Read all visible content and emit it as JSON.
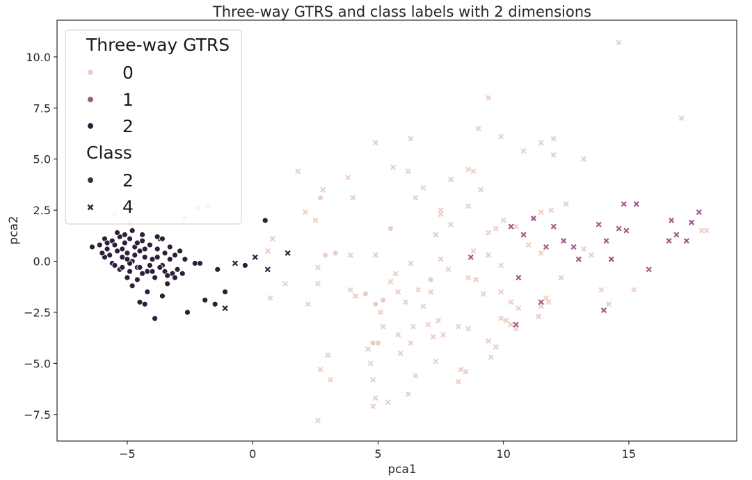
{
  "chart_data": {
    "type": "scatter",
    "title": "Three-way GTRS and class labels with 2 dimensions",
    "xlabel": "pca1",
    "ylabel": "pca2",
    "xlim": [
      -7.8,
      19.3
    ],
    "ylim": [
      -8.8,
      11.8
    ],
    "xticks": [
      -5,
      0,
      5,
      10,
      15
    ],
    "yticks": [
      -7.5,
      -5.0,
      -2.5,
      0.0,
      2.5,
      5.0,
      7.5,
      10.0
    ],
    "xtick_labels": [
      "−5",
      "0",
      "5",
      "10",
      "15"
    ],
    "ytick_labels": [
      "−7.5",
      "−5.0",
      "−2.5",
      "0.0",
      "2.5",
      "5.0",
      "7.5",
      "10.0"
    ],
    "grid": false,
    "legend": {
      "placement": "top-left",
      "hue_title": "Three-way GTRS",
      "hue_items": [
        {
          "label": "0",
          "color": "#ebcfc4"
        },
        {
          "label": "1",
          "color": "#a4588a"
        },
        {
          "label": "2",
          "color": "#2e1e3b"
        }
      ],
      "style_title": "Class",
      "style_items": [
        {
          "label": "2",
          "marker": "circle"
        },
        {
          "label": "4",
          "marker": "x"
        }
      ]
    },
    "hue_colors": {
      "0": "#ebcfc4",
      "1": "#a4588a",
      "2": "#2e1e3b"
    },
    "series": [
      {
        "hue": "2",
        "class": "2",
        "points": [
          [
            -6.4,
            0.7
          ],
          [
            -6.1,
            0.8
          ],
          [
            -5.9,
            1.1
          ],
          [
            -5.8,
            0.6
          ],
          [
            -5.7,
            0.3
          ],
          [
            -5.6,
            1.0
          ],
          [
            -5.5,
            0.8
          ],
          [
            -5.4,
            0.5
          ],
          [
            -5.3,
            1.2
          ],
          [
            -5.2,
            0.2
          ],
          [
            -5.1,
            0.9
          ],
          [
            -5.0,
            0.4
          ],
          [
            -4.9,
            1.1
          ],
          [
            -4.8,
            0.0
          ],
          [
            -4.7,
            0.7
          ],
          [
            -4.6,
            -0.3
          ],
          [
            -4.5,
            0.5
          ],
          [
            -4.4,
            1.0
          ],
          [
            -4.3,
            0.2
          ],
          [
            -4.2,
            -0.5
          ],
          [
            -4.1,
            0.8
          ],
          [
            -4.0,
            0.1
          ],
          [
            -3.9,
            -0.8
          ],
          [
            -3.8,
            0.6
          ],
          [
            -3.7,
            1.1
          ],
          [
            -3.6,
            -0.2
          ],
          [
            -3.5,
            0.4
          ],
          [
            -3.4,
            -1.1
          ],
          [
            -3.3,
            0.7
          ],
          [
            -3.2,
            -0.6
          ],
          [
            -3.1,
            0.3
          ],
          [
            -3.0,
            -0.4
          ],
          [
            -2.9,
            0.5
          ],
          [
            -2.8,
            -0.6
          ],
          [
            -2.7,
            0.1
          ],
          [
            -5.6,
            -0.1
          ],
          [
            -5.3,
            -0.4
          ],
          [
            -5.0,
            -0.8
          ],
          [
            -4.8,
            -1.2
          ],
          [
            -4.6,
            -0.9
          ],
          [
            -4.4,
            -0.6
          ],
          [
            -4.2,
            -1.5
          ],
          [
            -4.5,
            -2.0
          ],
          [
            -4.3,
            -2.1
          ],
          [
            -3.9,
            -2.8
          ],
          [
            -3.6,
            -1.7
          ],
          [
            -2.6,
            -2.5
          ],
          [
            -2.3,
            -0.1
          ],
          [
            -2.1,
            -0.1
          ],
          [
            -1.9,
            -1.9
          ],
          [
            -1.5,
            -2.1
          ],
          [
            -1.4,
            -0.4
          ],
          [
            -1.1,
            -1.5
          ],
          [
            -0.3,
            -0.2
          ],
          [
            -5.9,
            0.2
          ],
          [
            -5.5,
            -0.2
          ],
          [
            -5.2,
            0.6
          ],
          [
            -4.9,
            -0.1
          ],
          [
            -4.7,
            0.3
          ],
          [
            -4.5,
            -0.3
          ],
          [
            -4.3,
            0.6
          ],
          [
            -4.1,
            -0.2
          ],
          [
            -3.8,
            0.2
          ],
          [
            -3.5,
            -0.5
          ],
          [
            -3.3,
            0.1
          ],
          [
            -3.1,
            -0.8
          ],
          [
            -5.4,
            1.4
          ],
          [
            -5.1,
            1.3
          ],
          [
            -4.8,
            1.5
          ],
          [
            -4.4,
            1.3
          ],
          [
            -3.8,
            1.2
          ],
          [
            -3.6,
            1.1
          ],
          [
            -6.0,
            0.4
          ],
          [
            -5.8,
            0.9
          ],
          [
            -5.0,
            0.1
          ],
          [
            -4.6,
            0.9
          ],
          [
            -4.0,
            -0.5
          ],
          [
            -3.7,
            -0.3
          ],
          [
            -3.4,
            -0.7
          ],
          [
            -4.9,
            -0.5
          ],
          [
            -5.2,
            -0.3
          ],
          [
            0.5,
            2.0
          ]
        ]
      },
      {
        "hue": "2",
        "class": "4",
        "points": [
          [
            -0.7,
            -0.1
          ],
          [
            0.1,
            0.2
          ],
          [
            0.6,
            -0.4
          ],
          [
            1.4,
            0.4
          ],
          [
            -1.1,
            -2.3
          ]
        ]
      },
      {
        "hue": "0",
        "class": "2",
        "points": [
          [
            -5.5,
            2.3
          ],
          [
            -4.9,
            1.9
          ],
          [
            -2.7,
            2.1
          ],
          [
            -2.2,
            2.6
          ],
          [
            -1.8,
            2.7
          ],
          [
            2.7,
            3.1
          ],
          [
            2.9,
            0.3
          ],
          [
            3.3,
            0.4
          ],
          [
            4.5,
            -1.6
          ],
          [
            4.8,
            -4.0
          ],
          [
            5.0,
            -4.0
          ],
          [
            5.2,
            -1.9
          ],
          [
            5.5,
            1.6
          ],
          [
            7.1,
            -0.9
          ],
          [
            4.9,
            -2.1
          ]
        ]
      },
      {
        "hue": "0",
        "class": "4",
        "points": [
          [
            14.6,
            10.7
          ],
          [
            9.4,
            8.0
          ],
          [
            17.1,
            7.0
          ],
          [
            9.0,
            6.5
          ],
          [
            9.9,
            6.1
          ],
          [
            6.3,
            6.0
          ],
          [
            4.9,
            5.8
          ],
          [
            11.5,
            5.8
          ],
          [
            12.0,
            6.0
          ],
          [
            10.8,
            5.4
          ],
          [
            12.0,
            5.2
          ],
          [
            13.2,
            5.0
          ],
          [
            5.6,
            4.6
          ],
          [
            6.2,
            4.4
          ],
          [
            1.8,
            4.4
          ],
          [
            3.8,
            4.1
          ],
          [
            8.8,
            4.4
          ],
          [
            8.6,
            4.5
          ],
          [
            7.9,
            4.0
          ],
          [
            2.8,
            3.5
          ],
          [
            4.0,
            3.1
          ],
          [
            6.5,
            3.1
          ],
          [
            9.1,
            3.5
          ],
          [
            6.8,
            3.6
          ],
          [
            2.1,
            2.4
          ],
          [
            7.5,
            2.5
          ],
          [
            7.5,
            2.3
          ],
          [
            8.6,
            2.7
          ],
          [
            11.5,
            2.4
          ],
          [
            11.9,
            2.5
          ],
          [
            12.5,
            2.8
          ],
          [
            9.7,
            1.6
          ],
          [
            9.4,
            1.4
          ],
          [
            10.0,
            2.0
          ],
          [
            10.5,
            1.7
          ],
          [
            7.9,
            1.8
          ],
          [
            7.3,
            1.3
          ],
          [
            2.5,
            2.0
          ],
          [
            0.8,
            1.1
          ],
          [
            0.6,
            0.5
          ],
          [
            2.6,
            -0.3
          ],
          [
            3.9,
            0.3
          ],
          [
            4.9,
            0.3
          ],
          [
            5.7,
            -0.6
          ],
          [
            6.3,
            -0.1
          ],
          [
            7.5,
            0.1
          ],
          [
            7.8,
            -0.4
          ],
          [
            8.8,
            0.5
          ],
          [
            8.6,
            -0.8
          ],
          [
            9.4,
            0.3
          ],
          [
            9.9,
            -0.2
          ],
          [
            11.0,
            0.8
          ],
          [
            11.5,
            0.4
          ],
          [
            13.2,
            0.6
          ],
          [
            13.5,
            0.3
          ],
          [
            12.3,
            -0.8
          ],
          [
            8.9,
            -0.9
          ],
          [
            9.2,
            -1.6
          ],
          [
            9.9,
            -1.5
          ],
          [
            10.3,
            -2.0
          ],
          [
            10.6,
            -2.3
          ],
          [
            11.7,
            -1.8
          ],
          [
            11.8,
            -2.0
          ],
          [
            13.9,
            -1.4
          ],
          [
            14.2,
            -2.1
          ],
          [
            15.2,
            -1.4
          ],
          [
            17.9,
            1.5
          ],
          [
            18.1,
            1.5
          ],
          [
            0.7,
            -1.8
          ],
          [
            1.3,
            -1.1
          ],
          [
            2.2,
            -2.1
          ],
          [
            2.6,
            -1.1
          ],
          [
            3.9,
            -1.4
          ],
          [
            4.1,
            -1.7
          ],
          [
            5.1,
            -2.5
          ],
          [
            5.5,
            -1.0
          ],
          [
            5.8,
            -1.5
          ],
          [
            6.1,
            -2.0
          ],
          [
            6.6,
            -1.4
          ],
          [
            6.8,
            -2.2
          ],
          [
            7.0,
            -3.1
          ],
          [
            7.4,
            -2.9
          ],
          [
            7.2,
            -3.7
          ],
          [
            6.4,
            -3.2
          ],
          [
            6.3,
            -4.0
          ],
          [
            5.8,
            -3.6
          ],
          [
            5.9,
            -4.5
          ],
          [
            5.2,
            -3.2
          ],
          [
            4.6,
            -4.3
          ],
          [
            4.7,
            -5.0
          ],
          [
            4.8,
            -5.8
          ],
          [
            3.0,
            -4.6
          ],
          [
            3.1,
            -5.8
          ],
          [
            2.7,
            -5.3
          ],
          [
            2.6,
            -7.8
          ],
          [
            4.8,
            -7.1
          ],
          [
            4.9,
            -6.7
          ],
          [
            5.4,
            -6.9
          ],
          [
            6.2,
            -6.5
          ],
          [
            6.5,
            -5.6
          ],
          [
            7.3,
            -4.9
          ],
          [
            7.6,
            -3.6
          ],
          [
            8.2,
            -3.2
          ],
          [
            8.6,
            -3.3
          ],
          [
            9.4,
            -3.9
          ],
          [
            9.5,
            -4.7
          ],
          [
            9.7,
            -4.2
          ],
          [
            9.9,
            -2.8
          ],
          [
            10.1,
            -2.9
          ],
          [
            10.3,
            -3.1
          ],
          [
            10.5,
            -3.3
          ],
          [
            11.5,
            -2.2
          ],
          [
            11.4,
            -2.7
          ],
          [
            8.2,
            -5.9
          ],
          [
            8.3,
            -5.3
          ],
          [
            8.5,
            -5.4
          ],
          [
            7.1,
            -1.5
          ]
        ]
      },
      {
        "hue": "1",
        "class": "4",
        "points": [
          [
            8.7,
            0.2
          ],
          [
            10.3,
            1.7
          ],
          [
            10.8,
            1.3
          ],
          [
            11.2,
            2.1
          ],
          [
            11.7,
            0.7
          ],
          [
            12.0,
            1.7
          ],
          [
            12.4,
            1.0
          ],
          [
            12.8,
            0.7
          ],
          [
            13.0,
            0.1
          ],
          [
            13.8,
            1.8
          ],
          [
            14.1,
            1.0
          ],
          [
            14.3,
            0.1
          ],
          [
            14.6,
            1.6
          ],
          [
            14.8,
            2.8
          ],
          [
            14.9,
            1.5
          ],
          [
            15.3,
            2.8
          ],
          [
            15.8,
            -0.4
          ],
          [
            16.6,
            1.0
          ],
          [
            16.7,
            2.0
          ],
          [
            16.9,
            1.3
          ],
          [
            17.3,
            1.0
          ],
          [
            17.5,
            1.9
          ],
          [
            17.8,
            2.4
          ],
          [
            11.5,
            -2.0
          ],
          [
            10.6,
            -0.8
          ],
          [
            10.5,
            -3.1
          ],
          [
            14.0,
            -2.4
          ]
        ]
      }
    ]
  }
}
